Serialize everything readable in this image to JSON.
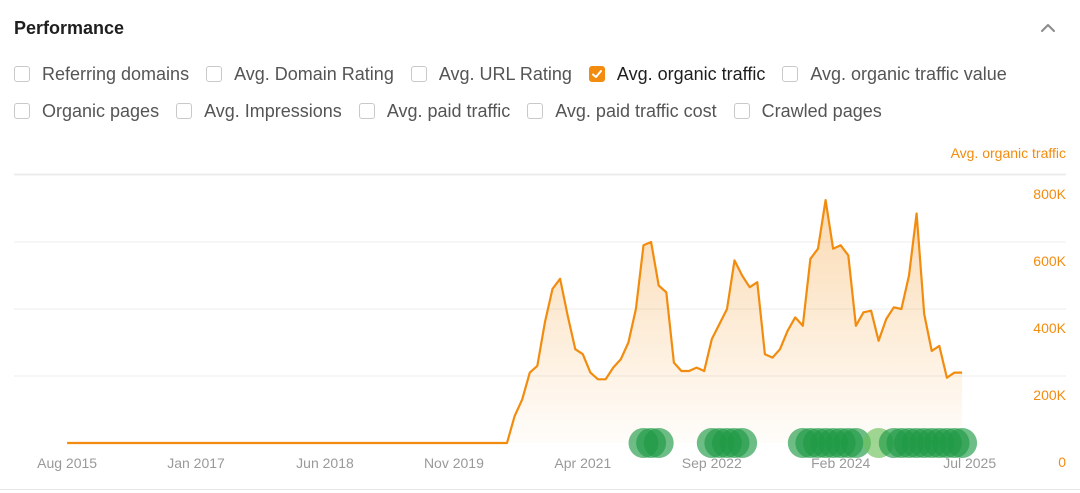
{
  "panel": {
    "title": "Performance",
    "collapse_icon": "chevron-up-icon"
  },
  "metrics": [
    [
      {
        "label": "Referring domains",
        "checked": false
      },
      {
        "label": "Avg. Domain Rating",
        "checked": false
      },
      {
        "label": "Avg. URL Rating",
        "checked": false
      },
      {
        "label": "Avg. organic traffic",
        "checked": true
      },
      {
        "label": "Avg. organic traffic value",
        "checked": false
      }
    ],
    [
      {
        "label": "Organic pages",
        "checked": false
      },
      {
        "label": "Avg. Impressions",
        "checked": false
      },
      {
        "label": "Avg. paid traffic",
        "checked": false
      },
      {
        "label": "Avg. paid traffic cost",
        "checked": false
      },
      {
        "label": "Crawled pages",
        "checked": false
      }
    ]
  ],
  "colors": {
    "accent": "#f28c0f",
    "marker": "#1f9a45",
    "marker_light": "#6cc05a",
    "grid": "#ececec",
    "tick": "#999999"
  },
  "chart_data": {
    "type": "area",
    "ylabel": "Avg. organic traffic",
    "ylim": [
      0,
      800000
    ],
    "yticks": [
      0,
      200000,
      400000,
      600000,
      800000
    ],
    "ytick_labels": [
      "0",
      "200K",
      "400K",
      "600K",
      "800K"
    ],
    "xlim": [
      "2015-01",
      "2025-11"
    ],
    "xticks": [
      "2015-08",
      "2017-01",
      "2018-06",
      "2019-11",
      "2021-04",
      "2022-09",
      "2024-02",
      "2025-07"
    ],
    "xtick_labels": [
      "Aug 2015",
      "Jan 2017",
      "Jun 2018",
      "Nov 2019",
      "Apr 2021",
      "Sep 2022",
      "Feb 2024",
      "Jul 2025"
    ],
    "grid": true,
    "series": [
      {
        "name": "Avg. organic traffic",
        "points": [
          [
            "2015-08",
            0
          ],
          [
            "2020-06",
            0
          ],
          [
            "2020-07",
            80000
          ],
          [
            "2020-08",
            130000
          ],
          [
            "2020-09",
            210000
          ],
          [
            "2020-10",
            230000
          ],
          [
            "2020-11",
            360000
          ],
          [
            "2020-12",
            460000
          ],
          [
            "2021-01",
            490000
          ],
          [
            "2021-02",
            380000
          ],
          [
            "2021-03",
            280000
          ],
          [
            "2021-04",
            265000
          ],
          [
            "2021-05",
            210000
          ],
          [
            "2021-06",
            190000
          ],
          [
            "2021-07",
            190000
          ],
          [
            "2021-08",
            225000
          ],
          [
            "2021-09",
            250000
          ],
          [
            "2021-10",
            300000
          ],
          [
            "2021-11",
            400000
          ],
          [
            "2021-12",
            590000
          ],
          [
            "2022-01",
            600000
          ],
          [
            "2022-02",
            470000
          ],
          [
            "2022-03",
            450000
          ],
          [
            "2022-04",
            240000
          ],
          [
            "2022-05",
            215000
          ],
          [
            "2022-06",
            215000
          ],
          [
            "2022-07",
            225000
          ],
          [
            "2022-08",
            215000
          ],
          [
            "2022-09",
            310000
          ],
          [
            "2022-10",
            355000
          ],
          [
            "2022-11",
            400000
          ],
          [
            "2022-12",
            545000
          ],
          [
            "2023-01",
            500000
          ],
          [
            "2023-02",
            465000
          ],
          [
            "2023-03",
            480000
          ],
          [
            "2023-04",
            265000
          ],
          [
            "2023-05",
            255000
          ],
          [
            "2023-06",
            280000
          ],
          [
            "2023-07",
            335000
          ],
          [
            "2023-08",
            375000
          ],
          [
            "2023-09",
            350000
          ],
          [
            "2023-10",
            550000
          ],
          [
            "2023-11",
            580000
          ],
          [
            "2023-12",
            725000
          ],
          [
            "2024-01",
            580000
          ],
          [
            "2024-02",
            590000
          ],
          [
            "2024-03",
            560000
          ],
          [
            "2024-04",
            350000
          ],
          [
            "2024-05",
            390000
          ],
          [
            "2024-06",
            395000
          ],
          [
            "2024-07",
            305000
          ],
          [
            "2024-08",
            370000
          ],
          [
            "2024-09",
            405000
          ],
          [
            "2024-10",
            400000
          ],
          [
            "2024-11",
            500000
          ],
          [
            "2024-12",
            685000
          ],
          [
            "2025-01",
            385000
          ],
          [
            "2025-02",
            275000
          ],
          [
            "2025-03",
            290000
          ],
          [
            "2025-04",
            195000
          ],
          [
            "2025-05",
            210000
          ],
          [
            "2025-06",
            210000
          ]
        ]
      }
    ],
    "annotation_markers": [
      {
        "date": "2021-12",
        "shade": "dark"
      },
      {
        "date": "2022-01",
        "shade": "dark"
      },
      {
        "date": "2022-02",
        "shade": "dark"
      },
      {
        "date": "2022-09",
        "shade": "dark"
      },
      {
        "date": "2022-10",
        "shade": "dark"
      },
      {
        "date": "2022-11",
        "shade": "dark"
      },
      {
        "date": "2022-12",
        "shade": "dark"
      },
      {
        "date": "2023-01",
        "shade": "dark"
      },
      {
        "date": "2023-09",
        "shade": "dark"
      },
      {
        "date": "2023-10",
        "shade": "dark"
      },
      {
        "date": "2023-11",
        "shade": "dark"
      },
      {
        "date": "2023-12",
        "shade": "dark"
      },
      {
        "date": "2024-01",
        "shade": "dark"
      },
      {
        "date": "2024-02",
        "shade": "dark"
      },
      {
        "date": "2024-03",
        "shade": "dark"
      },
      {
        "date": "2024-04",
        "shade": "dark"
      },
      {
        "date": "2024-07",
        "shade": "light"
      },
      {
        "date": "2024-09",
        "shade": "dark"
      },
      {
        "date": "2024-10",
        "shade": "dark"
      },
      {
        "date": "2024-11",
        "shade": "dark"
      },
      {
        "date": "2024-12",
        "shade": "dark"
      },
      {
        "date": "2025-01",
        "shade": "dark"
      },
      {
        "date": "2025-02",
        "shade": "dark"
      },
      {
        "date": "2025-03",
        "shade": "dark"
      },
      {
        "date": "2025-04",
        "shade": "dark"
      },
      {
        "date": "2025-05",
        "shade": "dark"
      },
      {
        "date": "2025-06",
        "shade": "dark"
      }
    ]
  }
}
